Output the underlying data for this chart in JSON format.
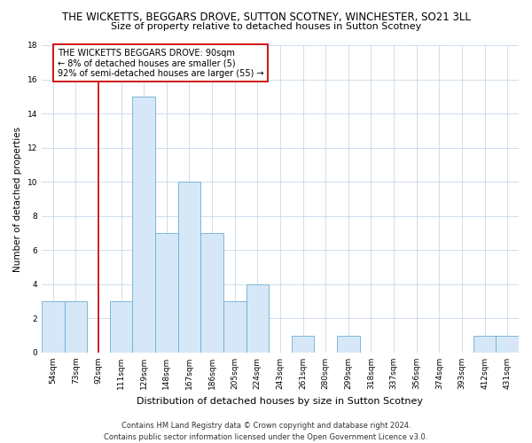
{
  "title_line1": "THE WICKETTS, BEGGARS DROVE, SUTTON SCOTNEY, WINCHESTER, SO21 3LL",
  "title_line2": "Size of property relative to detached houses in Sutton Scotney",
  "xlabel": "Distribution of detached houses by size in Sutton Scotney",
  "ylabel": "Number of detached properties",
  "bar_labels": [
    "54sqm",
    "73sqm",
    "92sqm",
    "111sqm",
    "129sqm",
    "148sqm",
    "167sqm",
    "186sqm",
    "205sqm",
    "224sqm",
    "243sqm",
    "261sqm",
    "280sqm",
    "299sqm",
    "318sqm",
    "337sqm",
    "356sqm",
    "374sqm",
    "393sqm",
    "412sqm",
    "431sqm"
  ],
  "bar_heights": [
    3,
    3,
    0,
    3,
    15,
    7,
    10,
    7,
    3,
    4,
    0,
    1,
    0,
    1,
    0,
    0,
    0,
    0,
    0,
    1,
    1
  ],
  "bar_color": "#d6e8f7",
  "bar_edge_color": "#6baed6",
  "vline_x_index": 2,
  "vline_color": "#cc0000",
  "annotation_text": "THE WICKETTS BEGGARS DROVE: 90sqm\n← 8% of detached houses are smaller (5)\n92% of semi-detached houses are larger (55) →",
  "annotation_box_color": "#ffffff",
  "annotation_box_edge": "#cc0000",
  "ylim": [
    0,
    18
  ],
  "yticks": [
    0,
    2,
    4,
    6,
    8,
    10,
    12,
    14,
    16,
    18
  ],
  "footer_line1": "Contains HM Land Registry data © Crown copyright and database right 2024.",
  "footer_line2": "Contains public sector information licensed under the Open Government Licence v3.0.",
  "bg_color": "#ffffff",
  "grid_color": "#c8d8e8",
  "title_fontsize": 8.5,
  "subtitle_fontsize": 8.0,
  "ylabel_fontsize": 7.5,
  "xlabel_fontsize": 8.0,
  "tick_fontsize": 6.5,
  "annot_fontsize": 7.0,
  "footer_fontsize": 6.0
}
